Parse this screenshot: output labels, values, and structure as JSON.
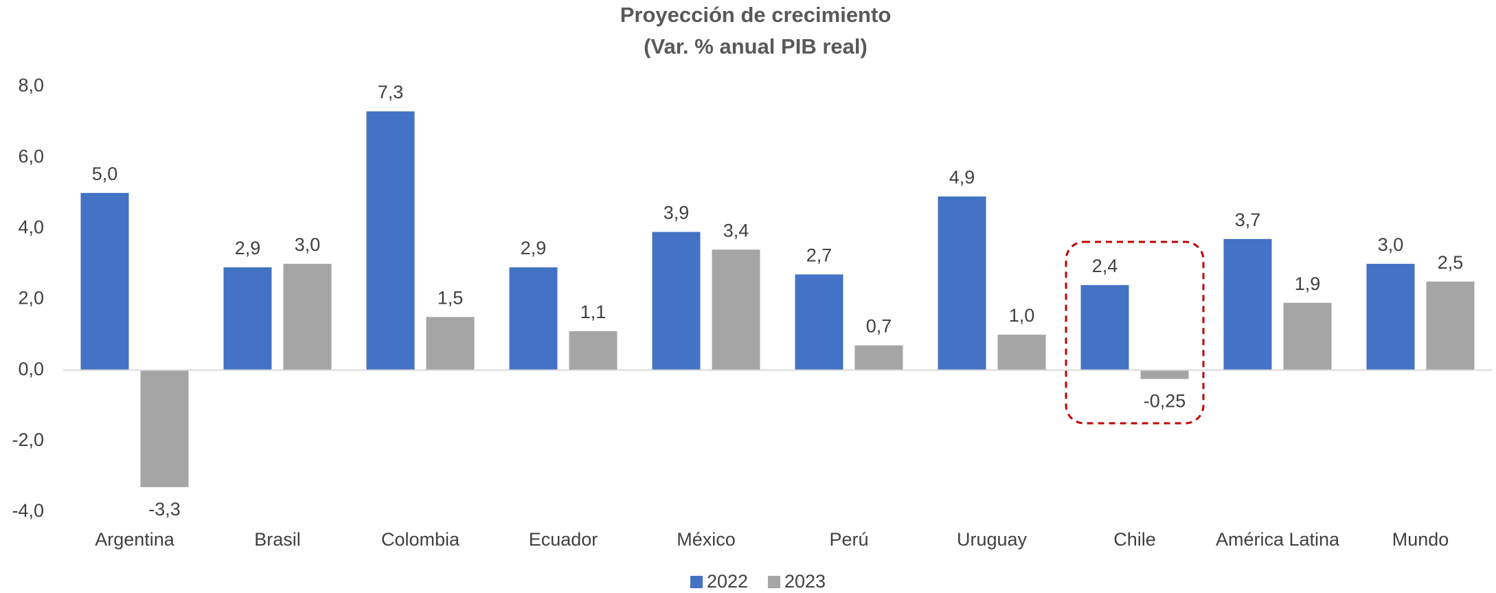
{
  "chart_data": {
    "type": "bar",
    "title": "Proyección de crecimiento",
    "subtitle": "(Var. % anual PIB real)",
    "categories": [
      "Argentina",
      "Brasil",
      "Colombia",
      "Ecuador",
      "México",
      "Perú",
      "Uruguay",
      "Chile",
      "América Latina",
      "Mundo"
    ],
    "series": [
      {
        "name": "2022",
        "color": "#4472c4",
        "values": [
          5.0,
          2.9,
          7.3,
          2.9,
          3.9,
          2.7,
          4.9,
          2.4,
          3.7,
          3.0
        ],
        "value_labels": [
          "5,0",
          "2,9",
          "7,3",
          "2,9",
          "3,9",
          "2,7",
          "4,9",
          "2,4",
          "3,7",
          "3,0"
        ]
      },
      {
        "name": "2023",
        "color": "#a5a5a5",
        "values": [
          -3.3,
          3.0,
          1.5,
          1.1,
          3.4,
          0.7,
          1.0,
          -0.25,
          1.9,
          2.5
        ],
        "value_labels": [
          "-3,3",
          "3,0",
          "1,5",
          "1,1",
          "3,4",
          "0,7",
          "1,0",
          "-0,25",
          "1,9",
          "2,5"
        ]
      }
    ],
    "ylim": [
      -4,
      8
    ],
    "yticks": [
      {
        "value": -4,
        "label": "-4,0"
      },
      {
        "value": -2,
        "label": "-2,0"
      },
      {
        "value": 0,
        "label": "0,0"
      },
      {
        "value": 2,
        "label": "2,0"
      },
      {
        "value": 4,
        "label": "4,0"
      },
      {
        "value": 6,
        "label": "6,0"
      },
      {
        "value": 8,
        "label": "8,0"
      }
    ],
    "grid": false,
    "legend": "bottom"
  }
}
